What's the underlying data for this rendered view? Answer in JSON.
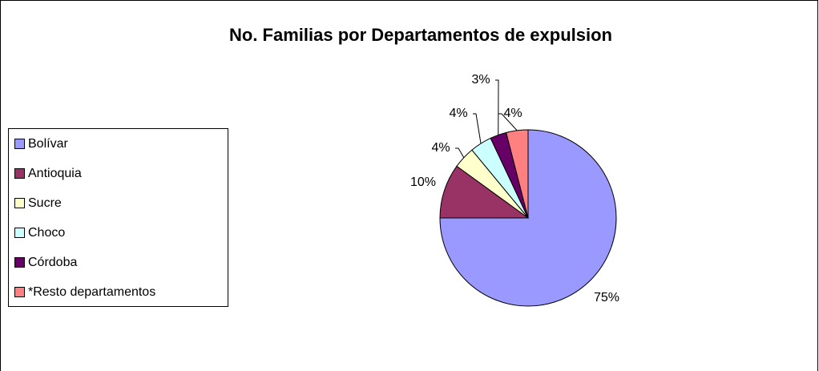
{
  "chart_data": {
    "type": "pie",
    "title": "No. Familias por Departamentos de expulsion",
    "categories": [
      "Bolívar",
      "Antioquia",
      "Sucre",
      "Choco",
      "Córdoba",
      "*Resto departamentos"
    ],
    "values": [
      75,
      10,
      4,
      4,
      3,
      4
    ],
    "value_labels": [
      "75%",
      "10%",
      "4%",
      "4%",
      "3%",
      "4%"
    ],
    "colors": [
      "#9999ff",
      "#993366",
      "#ffffcc",
      "#ccffff",
      "#660066",
      "#ff8080"
    ],
    "legend": "left"
  }
}
